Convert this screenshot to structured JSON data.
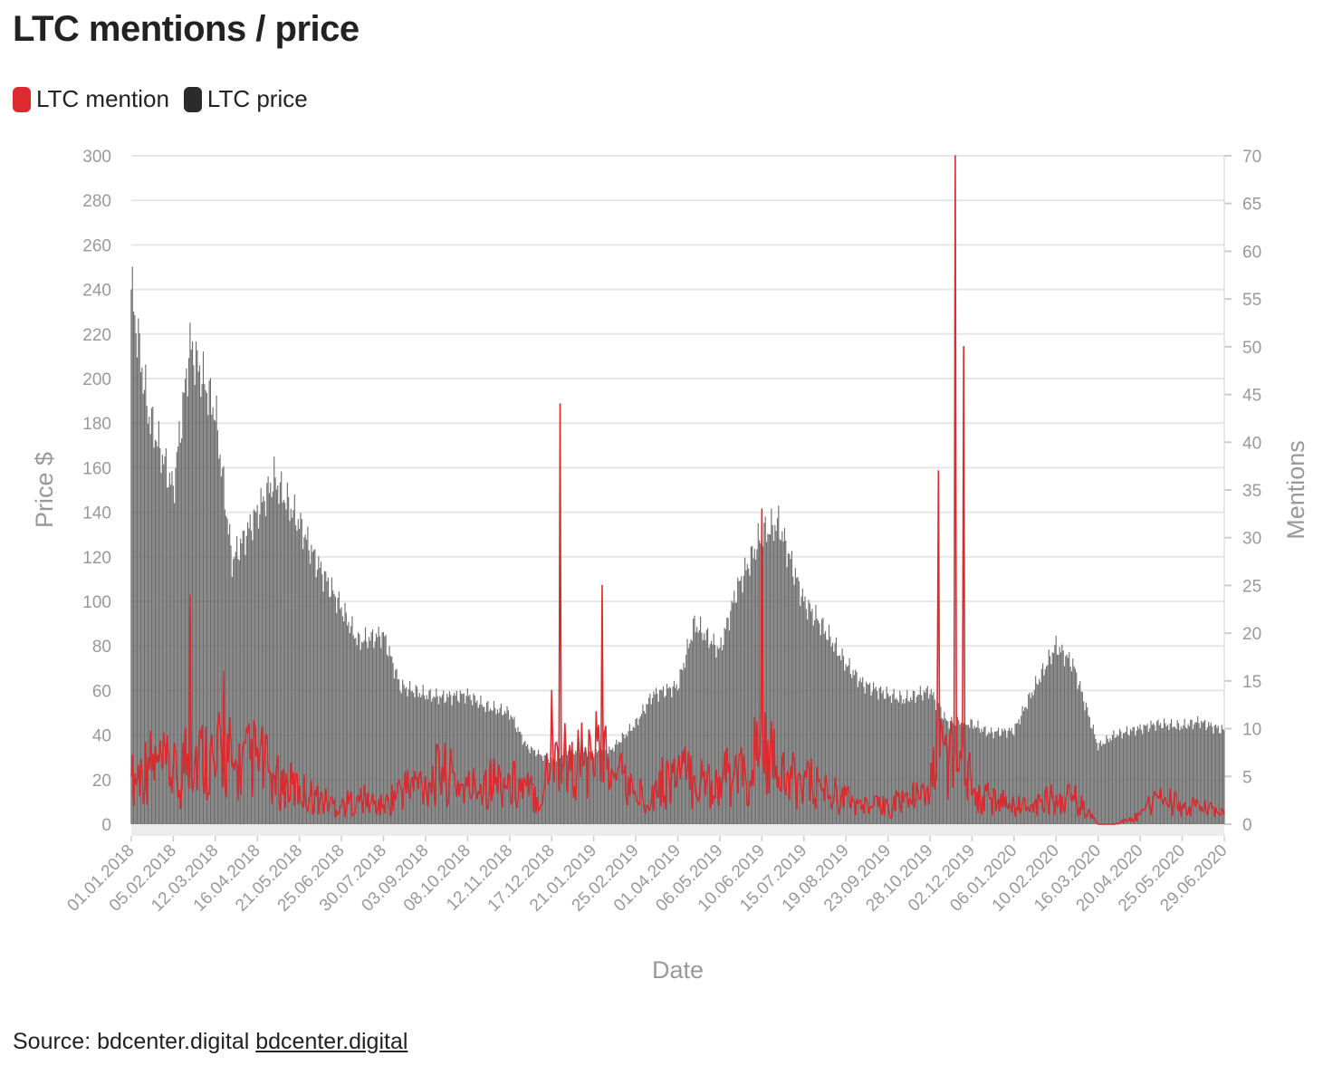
{
  "title": "LTC mentions / price",
  "legend": {
    "mention_label": "LTC mention",
    "price_label": "LTC price"
  },
  "colors": {
    "mention": "#dd2a2f",
    "price": "#6b6b6b",
    "price_swatch": "#2b2b2b",
    "grid": "#e6e6e6",
    "axis_text": "#999999"
  },
  "source": {
    "label": "Source: bdcenter.digital",
    "link_text": "bdcenter.digital"
  },
  "chart_data": {
    "type": "bar+line",
    "title": "LTC mentions / price",
    "xlabel": "Date",
    "ylabel_left": "Price $",
    "ylabel_right": "Mentions",
    "ylim_left": [
      0,
      300
    ],
    "ylim_right": [
      0,
      70
    ],
    "yticks_left": [
      0,
      20,
      40,
      60,
      80,
      100,
      120,
      140,
      160,
      180,
      200,
      220,
      240,
      260,
      280,
      300
    ],
    "yticks_right": [
      0,
      5,
      10,
      15,
      20,
      25,
      30,
      35,
      40,
      45,
      50,
      55,
      60,
      65,
      70
    ],
    "x_tick_labels": [
      "01.01.2018",
      "05.02.2018",
      "12.03.2018",
      "16.04.2018",
      "21.05.2018",
      "25.06.2018",
      "30.07.2018",
      "03.09.2018",
      "08.10.2018",
      "12.11.2018",
      "17.12.2018",
      "21.01.2019",
      "25.02.2019",
      "01.04.2019",
      "06.05.2019",
      "10.06.2019",
      "15.07.2019",
      "19.08.2019",
      "23.09.2019",
      "28.10.2019",
      "02.12.2019",
      "06.01.2020",
      "10.02.2020",
      "16.03.2020",
      "20.04.2020",
      "25.05.2020",
      "29.06.2020"
    ],
    "series": [
      {
        "name": "LTC price",
        "kind": "bar",
        "axis": "left",
        "x": [
          "01.01.2018",
          "15.01.2018",
          "05.02.2018",
          "19.02.2018",
          "12.03.2018",
          "26.03.2018",
          "16.04.2018",
          "30.04.2018",
          "21.05.2018",
          "04.06.2018",
          "25.06.2018",
          "09.07.2018",
          "30.07.2018",
          "13.08.2018",
          "03.09.2018",
          "17.09.2018",
          "08.10.2018",
          "22.10.2018",
          "12.11.2018",
          "26.11.2018",
          "17.12.2018",
          "31.12.2018",
          "21.01.2019",
          "04.02.2019",
          "25.02.2019",
          "11.03.2019",
          "01.04.2019",
          "15.04.2019",
          "06.05.2019",
          "20.05.2019",
          "10.06.2019",
          "24.06.2019",
          "15.07.2019",
          "29.07.2019",
          "19.08.2019",
          "02.09.2019",
          "23.09.2019",
          "07.10.2019",
          "28.10.2019",
          "11.11.2019",
          "02.12.2019",
          "16.12.2019",
          "06.01.2020",
          "20.01.2020",
          "10.02.2020",
          "24.02.2020",
          "16.03.2020",
          "30.03.2020",
          "20.04.2020",
          "04.05.2020",
          "25.05.2020",
          "08.06.2020",
          "29.06.2020"
        ],
        "values": [
          240,
          185,
          150,
          215,
          185,
          118,
          140,
          155,
          135,
          118,
          97,
          82,
          85,
          62,
          58,
          57,
          58,
          53,
          50,
          35,
          28,
          33,
          32,
          33,
          45,
          58,
          62,
          90,
          78,
          105,
          130,
          135,
          100,
          90,
          72,
          63,
          58,
          56,
          60,
          46,
          45,
          41,
          42,
          58,
          80,
          72,
          35,
          40,
          43,
          45,
          44,
          46,
          42
        ]
      },
      {
        "name": "LTC mention",
        "kind": "line",
        "axis": "right",
        "x": [
          "01.01.2018",
          "15.01.2018",
          "05.02.2018",
          "12.02.2018",
          "19.02.2018",
          "12.03.2018",
          "19.03.2018",
          "26.03.2018",
          "16.04.2018",
          "30.04.2018",
          "21.05.2018",
          "04.06.2018",
          "25.06.2018",
          "09.07.2018",
          "30.07.2018",
          "13.08.2018",
          "03.09.2018",
          "17.09.2018",
          "08.10.2018",
          "22.10.2018",
          "12.11.2018",
          "26.11.2018",
          "10.12.2018",
          "17.12.2018",
          "24.12.2018",
          "31.12.2018",
          "14.01.2019",
          "21.01.2019",
          "28.01.2019",
          "04.02.2019",
          "11.02.2019",
          "25.02.2019",
          "11.03.2019",
          "01.04.2019",
          "15.04.2019",
          "06.05.2019",
          "20.05.2019",
          "03.06.2019",
          "10.06.2019",
          "17.06.2019",
          "24.06.2019",
          "15.07.2019",
          "29.07.2019",
          "19.08.2019",
          "02.09.2019",
          "23.09.2019",
          "07.10.2019",
          "28.10.2019",
          "04.11.2019",
          "11.11.2019",
          "18.11.2019",
          "25.11.2019",
          "02.12.2019",
          "16.12.2019",
          "06.01.2020",
          "20.01.2020",
          "10.02.2020",
          "24.02.2020",
          "16.03.2020",
          "30.03.2020",
          "20.04.2020",
          "04.05.2020",
          "25.05.2020",
          "08.06.2020",
          "29.06.2020"
        ],
        "values": [
          5,
          7,
          6,
          4,
          24,
          5,
          16,
          6,
          8,
          5,
          4,
          3,
          2,
          3,
          2,
          4,
          5,
          6,
          4,
          5,
          5,
          4,
          3,
          14,
          44,
          6,
          8,
          5,
          25,
          4,
          6,
          3,
          4,
          6,
          5,
          5,
          6,
          4,
          33,
          8,
          5,
          5,
          4,
          3,
          2,
          2,
          3,
          3,
          37,
          8,
          70,
          50,
          3,
          3,
          2,
          2,
          3,
          3,
          0,
          0,
          1,
          3,
          2,
          2,
          1
        ]
      }
    ],
    "legend_position": "top-left",
    "grid": true
  }
}
